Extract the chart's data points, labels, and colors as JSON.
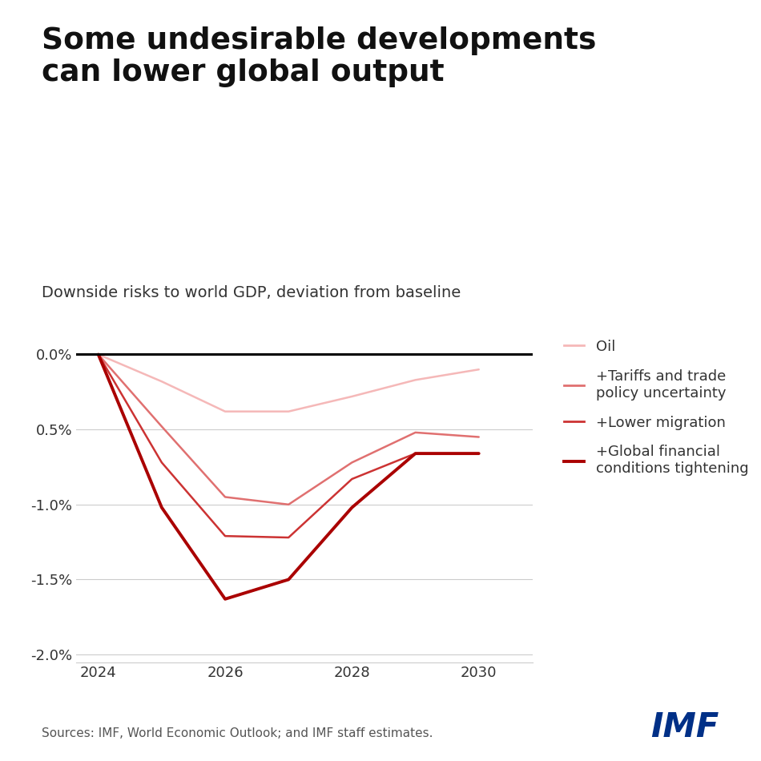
{
  "title": "Some undesirable developments\ncan lower global output",
  "subtitle": "Downside risks to world GDP, deviation from baseline",
  "source": "Sources: IMF, World Economic Outlook; and IMF staff estimates.",
  "x": [
    2024,
    2025,
    2026,
    2027,
    2028,
    2029,
    2030
  ],
  "series": [
    {
      "label": "Oil",
      "color": "#f5b8b8",
      "linewidth": 1.8,
      "values": [
        0.0,
        -0.18,
        -0.38,
        -0.38,
        -0.28,
        -0.17,
        -0.1
      ]
    },
    {
      "label": "+Tariffs and trade\npolicy uncertainty",
      "color": "#e07070",
      "linewidth": 1.8,
      "values": [
        0.0,
        -0.48,
        -0.95,
        -1.0,
        -0.72,
        -0.52,
        -0.55
      ]
    },
    {
      "label": "+Lower migration",
      "color": "#cc3333",
      "linewidth": 1.8,
      "values": [
        0.0,
        -0.72,
        -1.21,
        -1.22,
        -0.83,
        -0.66,
        -0.66
      ]
    },
    {
      "label": "+Global financial\nconditions tightening",
      "color": "#aa0000",
      "linewidth": 2.8,
      "values": [
        0.0,
        -1.02,
        -1.63,
        -1.5,
        -1.02,
        -0.66,
        -0.66
      ]
    }
  ],
  "ylim": [
    -2.05,
    0.08
  ],
  "yticks": [
    0.0,
    -0.5,
    -1.0,
    -1.5,
    -2.0
  ],
  "xticks": [
    2024,
    2026,
    2028,
    2030
  ],
  "background_color": "#ffffff",
  "grid_color": "#cccccc",
  "title_fontsize": 27,
  "subtitle_fontsize": 14,
  "tick_fontsize": 13,
  "legend_fontsize": 13,
  "source_fontsize": 11,
  "imf_color": "#003087"
}
